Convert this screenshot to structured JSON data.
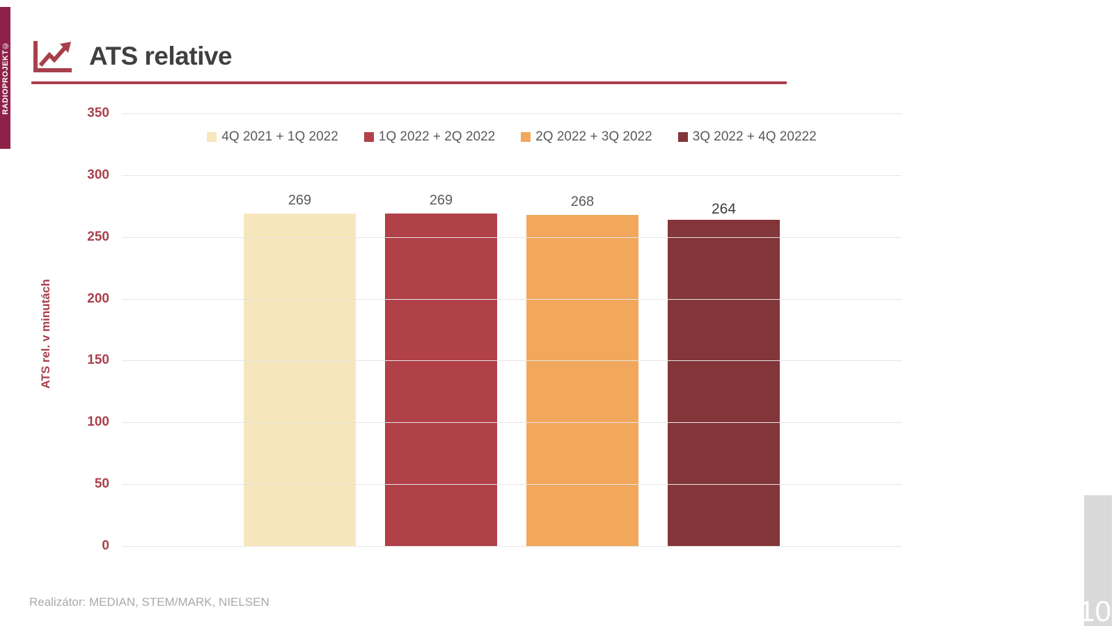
{
  "brand": {
    "vertical_text": "RADIOPROJEKT©",
    "bar_color": "#8E2149"
  },
  "header": {
    "title": "ATS relative",
    "icon": "trend-chart-icon",
    "accent_color": "#A8404B"
  },
  "chart_data": {
    "type": "bar",
    "title": "ATS relative",
    "xlabel": "",
    "ylabel": "ATS rel. v minutách",
    "ylim": [
      0,
      350
    ],
    "yticks": [
      350,
      300,
      250,
      200,
      150,
      100,
      50,
      0
    ],
    "grid": true,
    "legend_position": "top",
    "categories": [
      ""
    ],
    "series": [
      {
        "name": "4Q 2021 + 1Q 2022",
        "value": 269,
        "color": "#F6E7BD",
        "value_label_color": "#595959"
      },
      {
        "name": "1Q 2022 + 2Q 2022",
        "value": 269,
        "color": "#B04149",
        "value_label_color": "#595959"
      },
      {
        "name": "2Q 2022 + 3Q 2022",
        "value": 268,
        "color": "#F1A85C",
        "value_label_color": "#595959"
      },
      {
        "name": "3Q 2022 + 4Q 20222",
        "value": 264,
        "color": "#833639",
        "value_label_color": "#3B3B3B"
      }
    ]
  },
  "footer": {
    "source": "Realizátor: MEDIAN, STEM/MARK, NIELSEN",
    "page_number": "10"
  }
}
